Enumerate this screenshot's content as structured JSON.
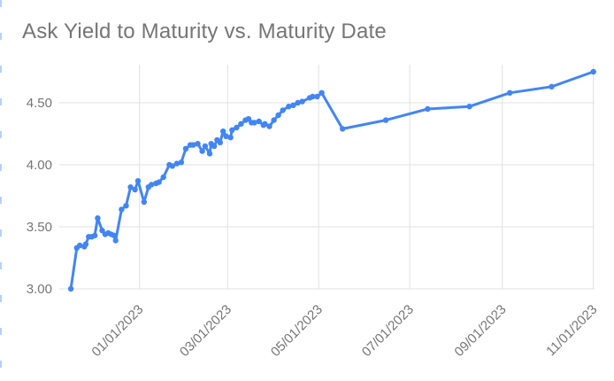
{
  "title": "Ask Yield to Maturity vs. Maturity Date",
  "colors": {
    "series": "#4285f4",
    "title_text": "#757575",
    "axis_text": "#757575",
    "gridline": "#e0e0e0",
    "background": "#ffffff",
    "selection_edge": "#aecbfa"
  },
  "chart_data": {
    "type": "line",
    "title": "Ask Yield to Maturity vs. Maturity Date",
    "xlabel": "",
    "ylabel": "",
    "legend": "none",
    "grid": true,
    "x_axis": {
      "tick_labels": [
        "01/01/2023",
        "03/01/2023",
        "05/01/2023",
        "07/01/2023",
        "09/01/2023",
        "11/01/2023"
      ],
      "label_rotation_deg": -45,
      "range": [
        "11/08/2022",
        "11/02/2023"
      ]
    },
    "y_axis": {
      "tick_labels": [
        "3.00",
        "3.50",
        "4.00",
        "4.50"
      ],
      "tick_values": [
        3.0,
        3.5,
        4.0,
        4.5
      ],
      "range": [
        3.0,
        4.81
      ]
    },
    "series": [
      {
        "name": "Ask Yield to Maturity",
        "color": "#4285f4",
        "marker": "circle",
        "points": [
          [
            "11/16/2022",
            3.0
          ],
          [
            "11/20/2022",
            3.33
          ],
          [
            "11/22/2022",
            3.35
          ],
          [
            "11/25/2022",
            3.34
          ],
          [
            "11/26/2022",
            3.36
          ],
          [
            "11/28/2022",
            3.42
          ],
          [
            "11/30/2022",
            3.42
          ],
          [
            "12/02/2022",
            3.43
          ],
          [
            "12/04/2022",
            3.57
          ],
          [
            "12/07/2022",
            3.47
          ],
          [
            "12/09/2022",
            3.44
          ],
          [
            "12/11/2022",
            3.45
          ],
          [
            "12/13/2022",
            3.44
          ],
          [
            "12/15/2022",
            3.43
          ],
          [
            "12/16/2022",
            3.39
          ],
          [
            "12/20/2022",
            3.64
          ],
          [
            "12/23/2022",
            3.67
          ],
          [
            "12/26/2022",
            3.82
          ],
          [
            "12/29/2022",
            3.8
          ],
          [
            "12/31/2022",
            3.87
          ],
          [
            "01/04/2023",
            3.7
          ],
          [
            "01/07/2023",
            3.82
          ],
          [
            "01/09/2023",
            3.84
          ],
          [
            "01/12/2023",
            3.85
          ],
          [
            "01/14/2023",
            3.86
          ],
          [
            "01/17/2023",
            3.9
          ],
          [
            "01/21/2023",
            4.0
          ],
          [
            "01/23/2023",
            3.99
          ],
          [
            "01/26/2023",
            4.01
          ],
          [
            "01/29/2023",
            4.02
          ],
          [
            "02/01/2023",
            4.13
          ],
          [
            "02/04/2023",
            4.16
          ],
          [
            "02/06/2023",
            4.16
          ],
          [
            "02/09/2023",
            4.17
          ],
          [
            "02/12/2023",
            4.11
          ],
          [
            "02/14/2023",
            4.15
          ],
          [
            "02/17/2023",
            4.09
          ],
          [
            "02/18/2023",
            4.17
          ],
          [
            "02/20/2023",
            4.15
          ],
          [
            "02/22/2023",
            4.2
          ],
          [
            "02/24/2023",
            4.18
          ],
          [
            "02/26/2023",
            4.27
          ],
          [
            "02/28/2023",
            4.23
          ],
          [
            "03/03/2023",
            4.22
          ],
          [
            "03/04/2023",
            4.28
          ],
          [
            "03/07/2023",
            4.3
          ],
          [
            "03/10/2023",
            4.33
          ],
          [
            "03/13/2023",
            4.36
          ],
          [
            "03/15/2023",
            4.37
          ],
          [
            "03/17/2023",
            4.34
          ],
          [
            "03/19/2023",
            4.34
          ],
          [
            "03/22/2023",
            4.35
          ],
          [
            "03/25/2023",
            4.32
          ],
          [
            "03/26/2023",
            4.33
          ],
          [
            "03/29/2023",
            4.31
          ],
          [
            "04/01/2023",
            4.36
          ],
          [
            "04/04/2023",
            4.4
          ],
          [
            "04/07/2023",
            4.44
          ],
          [
            "04/11/2023",
            4.47
          ],
          [
            "04/14/2023",
            4.48
          ],
          [
            "04/17/2023",
            4.5
          ],
          [
            "04/20/2023",
            4.51
          ],
          [
            "04/25/2023",
            4.54
          ],
          [
            "04/27/2023",
            4.55
          ],
          [
            "04/30/2023",
            4.55
          ],
          [
            "05/03/2023",
            4.58
          ],
          [
            "05/17/2023",
            4.29
          ],
          [
            "06/15/2023",
            4.36
          ],
          [
            "07/13/2023",
            4.45
          ],
          [
            "08/10/2023",
            4.47
          ],
          [
            "09/06/2023",
            4.58
          ],
          [
            "10/04/2023",
            4.63
          ],
          [
            "11/01/2023",
            4.75
          ]
        ]
      }
    ]
  }
}
